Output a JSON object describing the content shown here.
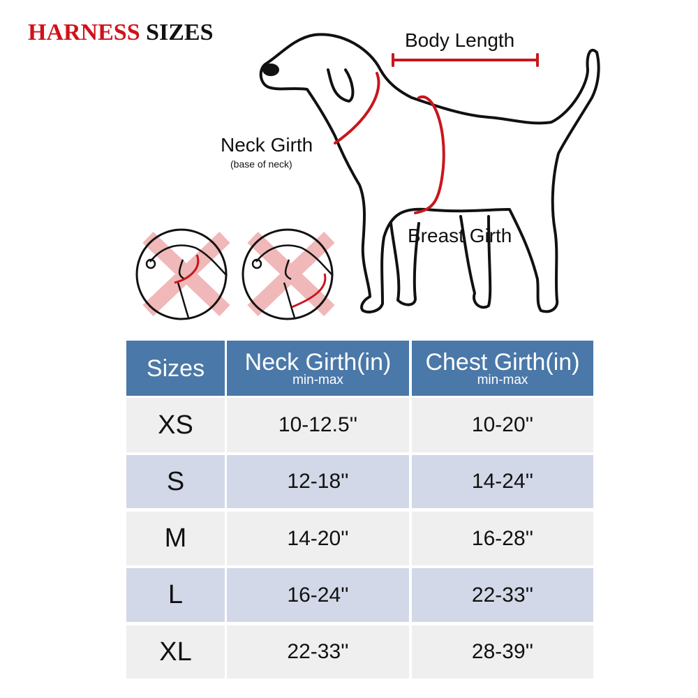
{
  "title": {
    "part1": "HARNESS",
    "part2": "SIZES"
  },
  "diagram": {
    "body_length": "Body Length",
    "neck_girth": "Neck Girth",
    "neck_girth_note": "(base of neck)",
    "breast_girth": "Breast Girth",
    "wrong_examples": [
      "incorrect-neck-measurement-icon",
      "incorrect-chest-measurement-icon"
    ]
  },
  "colors": {
    "accent_red": "#d0121b",
    "header_blue": "#4a78a8",
    "row_light": "#efefef",
    "row_blue": "#d3d8e8"
  },
  "table": {
    "headers": [
      {
        "label": "Sizes",
        "sub": ""
      },
      {
        "label": "Neck Girth(in)",
        "sub": "min-max"
      },
      {
        "label": "Chest Girth(in)",
        "sub": "min-max"
      }
    ],
    "rows": [
      {
        "size": "XS",
        "neck": "10-12.5''",
        "chest": "10-20''"
      },
      {
        "size": "S",
        "neck": "12-18''",
        "chest": "14-24''"
      },
      {
        "size": "M",
        "neck": "14-20''",
        "chest": "16-28''"
      },
      {
        "size": "L",
        "neck": "16-24''",
        "chest": "22-33''"
      },
      {
        "size": "XL",
        "neck": "22-33''",
        "chest": "28-39''"
      }
    ]
  }
}
